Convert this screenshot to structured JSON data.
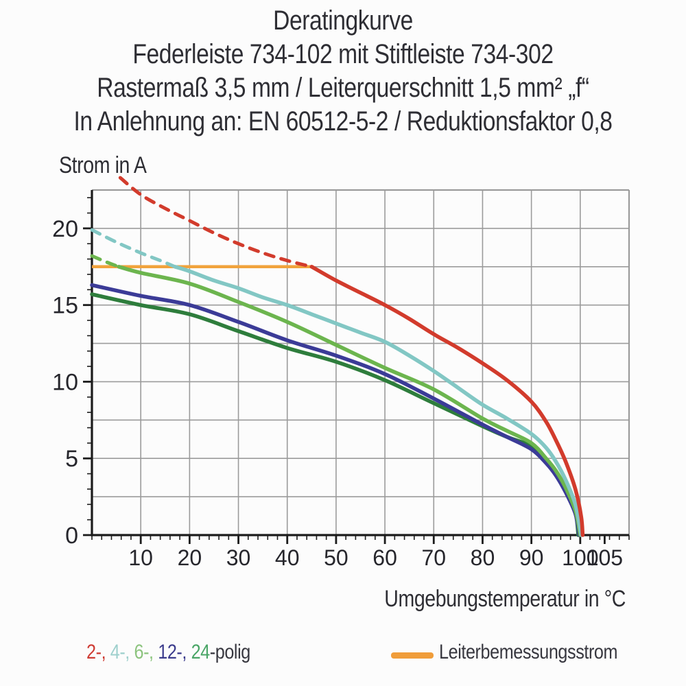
{
  "title": {
    "lines": [
      "Deratingkurve",
      "Federleiste 734-102 mit Stiftleiste 734-302",
      "Rastermaß 3,5 mm / Leiterquerschnitt 1,5 mm² „f“",
      "In Anlehnung an: EN 60512-5-2 / Reduktionsfaktor 0,8"
    ]
  },
  "labels": {
    "x_axis": "Umgebungstemperatur in °C",
    "y_axis": "Strom in A"
  },
  "legend": {
    "poles": {
      "items": [
        {
          "label": "2-,",
          "color": "#ce3b33"
        },
        {
          "label": "4-,",
          "color": "#9ed0cd"
        },
        {
          "label": "6-,",
          "color": "#8cc47e"
        },
        {
          "label": "12-,",
          "color": "#3b3b8c"
        },
        {
          "label": "24",
          "color": "#49a566"
        }
      ],
      "suffix": "-polig"
    },
    "reference": {
      "label": "Leiterbemessungsstrom",
      "swatch_color": "#f09d3a"
    }
  },
  "chart_data": {
    "type": "line",
    "title": "Deratingkurve",
    "subtitle": "Federleiste 734-102 mit Stiftleiste 734-302 / Rastermaß 3,5 mm / Leiterquerschnitt 1,5 mm² „f“ / In Anlehnung an: EN 60512-5-2 / Reduktionsfaktor 0,8",
    "x_axis": {
      "label": "Umgebungstemperatur in °C",
      "unit": "°C",
      "min": 0,
      "max": 110,
      "major_tick_labels": [
        10,
        20,
        30,
        40,
        50,
        60,
        70,
        80,
        90,
        100,
        105
      ],
      "minor_tick_step": 2,
      "gridline_step": 10
    },
    "y_axis": {
      "label": "Strom in A",
      "unit": "A",
      "min": 0,
      "max": 22.5,
      "major_tick_labels": [
        0,
        5,
        10,
        15,
        20
      ],
      "minor_tick_step": 1,
      "gridline_step": 2.5
    },
    "grid_on": true,
    "grid_color": "#9b9b9b",
    "axis_color": "#1c1c1c",
    "legend_position": "bottom",
    "series": [
      {
        "name": "24-polig",
        "color": "#2e7d3c",
        "dashed_points": [],
        "solid_points": [
          [
            0,
            15.7
          ],
          [
            10,
            15.0
          ],
          [
            20,
            14.4
          ],
          [
            30,
            13.3
          ],
          [
            40,
            12.2
          ],
          [
            50,
            11.3
          ],
          [
            60,
            10.1
          ],
          [
            70,
            8.6
          ],
          [
            80,
            7.1
          ],
          [
            85,
            6.4
          ],
          [
            90,
            5.8
          ],
          [
            93,
            4.9
          ],
          [
            95,
            4.0
          ],
          [
            97,
            2.9
          ],
          [
            99,
            1.5
          ],
          [
            99.6,
            0
          ]
        ]
      },
      {
        "name": "12-polig",
        "color": "#3b3b97",
        "dashed_points": [],
        "solid_points": [
          [
            0,
            16.3
          ],
          [
            10,
            15.6
          ],
          [
            20,
            15.0
          ],
          [
            30,
            13.9
          ],
          [
            40,
            12.7
          ],
          [
            50,
            11.7
          ],
          [
            60,
            10.5
          ],
          [
            70,
            8.9
          ],
          [
            80,
            7.2
          ],
          [
            85,
            6.4
          ],
          [
            90,
            5.6
          ],
          [
            93,
            4.7
          ],
          [
            95,
            3.9
          ],
          [
            97,
            2.8
          ],
          [
            99,
            1.4
          ],
          [
            99.8,
            0
          ]
        ]
      },
      {
        "name": "6-polig",
        "color": "#6cb54e",
        "dashed_points": [
          [
            0,
            18.2
          ],
          [
            3,
            17.8
          ],
          [
            5.5,
            17.5
          ]
        ],
        "solid_points": [
          [
            5.5,
            17.5
          ],
          [
            10,
            17.1
          ],
          [
            20,
            16.4
          ],
          [
            30,
            15.2
          ],
          [
            40,
            13.9
          ],
          [
            50,
            12.4
          ],
          [
            60,
            10.9
          ],
          [
            70,
            9.5
          ],
          [
            80,
            7.6
          ],
          [
            85,
            6.8
          ],
          [
            90,
            6.0
          ],
          [
            93,
            5.0
          ],
          [
            95,
            4.2
          ],
          [
            97,
            3.1
          ],
          [
            99,
            1.6
          ],
          [
            100,
            0
          ]
        ]
      },
      {
        "name": "4-polig",
        "color": "#82c7c4",
        "dashed_points": [
          [
            0,
            19.9
          ],
          [
            5,
            19.1
          ],
          [
            10,
            18.4
          ],
          [
            14,
            17.9
          ],
          [
            17,
            17.5
          ]
        ],
        "solid_points": [
          [
            17,
            17.5
          ],
          [
            20,
            17.2
          ],
          [
            25,
            16.6
          ],
          [
            30,
            16.1
          ],
          [
            35,
            15.5
          ],
          [
            40,
            15.0
          ],
          [
            45,
            14.4
          ],
          [
            50,
            13.8
          ],
          [
            55,
            13.2
          ],
          [
            60,
            12.6
          ],
          [
            65,
            11.7
          ],
          [
            70,
            10.7
          ],
          [
            75,
            9.6
          ],
          [
            80,
            8.5
          ],
          [
            85,
            7.6
          ],
          [
            90,
            6.6
          ],
          [
            93,
            5.7
          ],
          [
            95,
            4.8
          ],
          [
            97,
            3.6
          ],
          [
            99,
            2.0
          ],
          [
            100.2,
            0
          ]
        ]
      },
      {
        "name": "2-polig",
        "color": "#d23b2c",
        "dashed_points": [
          [
            5.8,
            23.3
          ],
          [
            10,
            22.2
          ],
          [
            15,
            21.3
          ],
          [
            20,
            20.5
          ],
          [
            25,
            19.7
          ],
          [
            30,
            19.0
          ],
          [
            35,
            18.4
          ],
          [
            40,
            17.9
          ],
          [
            45,
            17.5
          ]
        ],
        "solid_points": [
          [
            45,
            17.5
          ],
          [
            50,
            16.6
          ],
          [
            55,
            15.8
          ],
          [
            60,
            15.0
          ],
          [
            65,
            14.1
          ],
          [
            70,
            13.1
          ],
          [
            75,
            12.2
          ],
          [
            80,
            11.2
          ],
          [
            85,
            10.1
          ],
          [
            90,
            8.7
          ],
          [
            93,
            7.4
          ],
          [
            95,
            6.2
          ],
          [
            97,
            4.8
          ],
          [
            99,
            3.0
          ],
          [
            100.2,
            1.2
          ],
          [
            100.5,
            0
          ]
        ]
      }
    ],
    "reference_line": {
      "name": "Leiterbemessungsstrom",
      "color": "#f1a33c",
      "y": 17.5,
      "x_start": 0,
      "x_end": 45.3
    }
  }
}
